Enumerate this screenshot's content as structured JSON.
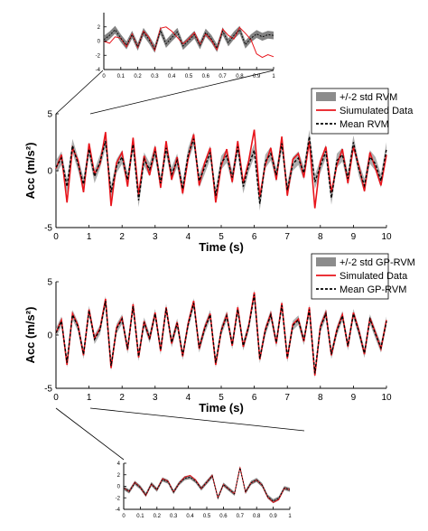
{
  "chart_data": [
    {
      "id": "inset-top",
      "type": "line",
      "x_range": [
        0,
        1
      ],
      "y_range": [
        -4,
        4
      ],
      "xticks": [
        "0",
        "0.1",
        "0.2",
        "0.3",
        "0.4",
        "0.5",
        "0.6",
        "0.7",
        "0.8",
        "0.9",
        "1"
      ],
      "yticks": [
        "-4",
        "-2",
        "0",
        "2"
      ],
      "xlabel": "",
      "ylabel": "",
      "series": [
        {
          "name": "",
          "role": "band",
          "color": "#7a7a7a",
          "values": [
            0.2,
            0.8,
            1.6,
            0.4,
            -0.6,
            0.9,
            -0.8,
            1.3,
            0.2,
            -1.1,
            1.5,
            -0.4,
            0.5,
            1.3,
            -0.7,
            0.1,
            0.9,
            -0.6,
            1.2,
            0.3,
            -1.0,
            1.4,
            -0.2,
            0.8,
            1.6,
            -0.5,
            0.4,
            1.0,
            0.6,
            0.9,
            0.8
          ]
        },
        {
          "name": "",
          "role": "simulated",
          "color": "#e8141b",
          "values": [
            0.0,
            -0.3,
            0.6,
            0.4,
            -0.8,
            1.0,
            -0.9,
            1.4,
            0.5,
            -1.3,
            1.8,
            2.0,
            1.4,
            0.5,
            -0.4,
            0.3,
            1.2,
            -0.5,
            1.0,
            0.1,
            -1.2,
            1.7,
            0.8,
            0.3,
            1.9,
            1.1,
            0.2,
            -1.8,
            -2.3,
            -1.9,
            -2.2
          ]
        },
        {
          "name": "",
          "role": "mean",
          "color": "#000000",
          "values": [
            0.2,
            0.8,
            1.6,
            0.4,
            -0.6,
            0.9,
            -0.8,
            1.3,
            0.2,
            -1.1,
            1.5,
            -0.4,
            0.5,
            1.3,
            -0.7,
            0.1,
            0.9,
            -0.6,
            1.2,
            0.3,
            -1.0,
            1.4,
            -0.2,
            0.8,
            1.6,
            -0.5,
            0.4,
            1.0,
            0.6,
            0.9,
            0.8
          ]
        }
      ]
    },
    {
      "id": "main-top",
      "type": "line",
      "x_range": [
        0,
        10
      ],
      "y_range": [
        -5,
        5
      ],
      "xticks": [
        "0",
        "1",
        "2",
        "3",
        "4",
        "5",
        "6",
        "7",
        "8",
        "9",
        "10"
      ],
      "yticks": [
        "-5",
        "0",
        "5"
      ],
      "xlabel": "Time (s)",
      "ylabel": "Acc (m/s²)",
      "legend": {
        "position": "top-right",
        "entries": [
          {
            "label": "+/-2 std RVM",
            "style": "band",
            "color": "#8c8c8c"
          },
          {
            "label": "Siumulated Data",
            "style": "solid",
            "color": "#e8141b"
          },
          {
            "label": "Mean RVM",
            "style": "dashed",
            "color": "#000000"
          }
        ]
      },
      "series": [
        {
          "name": "+/-2 std RVM",
          "role": "band",
          "color": "#9a9a9a",
          "values": [
            0.3,
            1.1,
            -1.4,
            2.2,
            0.6,
            -1.2,
            1.9,
            -0.5,
            0.8,
            2.6,
            -1.9,
            0.4,
            1.2,
            -0.8,
            2.3,
            -2.6,
            1.0,
            0.1,
            1.7,
            -1.1,
            2.0,
            -0.3,
            0.9,
            -1.6,
            1.4,
            2.8,
            -0.9,
            0.3,
            1.6,
            -2.2,
            0.7,
            1.3,
            -0.6,
            2.1,
            -1.4,
            0.5,
            1.8,
            -2.9,
            0.8,
            1.5,
            -0.4,
            2.4,
            -1.7,
            0.6,
            1.1,
            -0.2,
            3.0,
            -1.0,
            0.4,
            1.7,
            -2.4,
            0.9,
            1.4,
            -0.7,
            2.5,
            0.1,
            -1.3,
            1.2,
            0.6,
            -0.9,
            1.9
          ]
        },
        {
          "name": "Siumulated Data",
          "role": "simulated",
          "color": "#e8141b",
          "values": [
            0.2,
            1.4,
            -2.8,
            2.0,
            0.9,
            -1.9,
            2.4,
            -0.3,
            0.6,
            3.4,
            -3.1,
            0.7,
            1.6,
            -1.4,
            2.9,
            -2.1,
            1.3,
            -0.4,
            2.1,
            -1.5,
            2.6,
            -0.8,
            1.2,
            -2.0,
            1.1,
            3.2,
            -1.3,
            0.7,
            2.0,
            -2.8,
            0.4,
            1.9,
            -1.0,
            2.6,
            -1.1,
            0.9,
            3.6,
            -2.3,
            0.5,
            2.0,
            -0.8,
            3.0,
            -2.2,
            1.0,
            1.5,
            -0.6,
            2.6,
            -3.3,
            0.8,
            2.1,
            -1.9,
            0.5,
            1.9,
            -1.1,
            2.1,
            0.4,
            -1.8,
            1.6,
            0.2,
            -1.3,
            1.4
          ]
        },
        {
          "name": "Mean RVM",
          "role": "mean",
          "color": "#000000",
          "values": [
            0.3,
            1.1,
            -1.4,
            2.2,
            0.6,
            -1.2,
            1.9,
            -0.5,
            0.8,
            2.6,
            -1.9,
            0.4,
            1.2,
            -0.8,
            2.3,
            -2.6,
            1.0,
            0.1,
            1.7,
            -1.1,
            2.0,
            -0.3,
            0.9,
            -1.6,
            1.4,
            2.8,
            -0.9,
            0.3,
            1.6,
            -2.2,
            0.7,
            1.3,
            -0.6,
            2.1,
            -1.4,
            0.5,
            1.8,
            -2.9,
            0.8,
            1.5,
            -0.4,
            2.4,
            -1.7,
            0.6,
            1.1,
            -0.2,
            3.0,
            -1.0,
            0.4,
            1.7,
            -2.4,
            0.9,
            1.4,
            -0.7,
            2.5,
            0.1,
            -1.3,
            1.2,
            0.6,
            -0.9,
            1.9
          ]
        }
      ]
    },
    {
      "id": "main-bottom",
      "type": "line",
      "x_range": [
        0,
        10
      ],
      "y_range": [
        -5,
        5
      ],
      "xticks": [
        "0",
        "1",
        "2",
        "3",
        "4",
        "5",
        "6",
        "7",
        "8",
        "9",
        "10"
      ],
      "yticks": [
        "-5",
        "0",
        "5"
      ],
      "xlabel": "Time (s)",
      "ylabel": "Acc (m/s²)",
      "legend": {
        "position": "top-right",
        "entries": [
          {
            "label": "+/-2 std GP-RVM",
            "style": "band",
            "color": "#8c8c8c"
          },
          {
            "label": "Simulated Data",
            "style": "solid",
            "color": "#e8141b"
          },
          {
            "label": "Mean GP-RVM",
            "style": "dashed",
            "color": "#000000"
          }
        ]
      },
      "series": [
        {
          "name": "+/-2 std GP-RVM",
          "role": "band",
          "color": "#9a9a9a",
          "values": [
            0.2,
            1.3,
            -2.6,
            1.9,
            0.8,
            -1.8,
            2.3,
            -0.4,
            0.5,
            3.2,
            -2.9,
            0.6,
            1.5,
            -1.3,
            2.7,
            -2.0,
            1.2,
            -0.3,
            2.0,
            -1.4,
            2.5,
            -0.7,
            1.1,
            -1.9,
            1.0,
            3.0,
            -1.2,
            0.6,
            1.9,
            -2.6,
            0.4,
            1.8,
            -0.9,
            2.4,
            -1.0,
            0.8,
            3.8,
            -2.2,
            0.4,
            1.9,
            -0.7,
            2.8,
            -2.1,
            0.9,
            1.4,
            -0.5,
            2.4,
            -3.6,
            0.7,
            2.0,
            -1.8,
            0.4,
            1.8,
            -1.0,
            2.0,
            0.3,
            -1.7,
            1.5,
            0.1,
            -1.2,
            1.3
          ]
        },
        {
          "name": "Simulated Data",
          "role": "simulated",
          "color": "#e8141b",
          "values": [
            0.2,
            1.4,
            -2.8,
            2.0,
            0.9,
            -1.9,
            2.4,
            -0.3,
            0.6,
            3.4,
            -3.1,
            0.7,
            1.6,
            -1.4,
            2.9,
            -2.1,
            1.3,
            -0.4,
            2.1,
            -1.5,
            2.6,
            -0.8,
            1.2,
            -2.0,
            1.1,
            3.2,
            -1.3,
            0.7,
            2.0,
            -2.8,
            0.4,
            1.9,
            -1.0,
            2.6,
            -1.1,
            0.9,
            4.0,
            -2.3,
            0.5,
            2.0,
            -0.8,
            3.0,
            -2.2,
            1.0,
            1.5,
            -0.6,
            2.6,
            -3.8,
            0.8,
            2.1,
            -1.9,
            0.5,
            1.9,
            -1.1,
            2.1,
            0.4,
            -1.8,
            1.6,
            0.2,
            -1.3,
            1.4
          ]
        },
        {
          "name": "Mean GP-RVM",
          "role": "mean",
          "color": "#000000",
          "values": [
            0.2,
            1.3,
            -2.6,
            1.9,
            0.8,
            -1.8,
            2.3,
            -0.4,
            0.5,
            3.2,
            -2.9,
            0.6,
            1.5,
            -1.3,
            2.7,
            -2.0,
            1.2,
            -0.3,
            2.0,
            -1.4,
            2.5,
            -0.7,
            1.1,
            -1.9,
            1.0,
            3.0,
            -1.2,
            0.6,
            1.9,
            -2.6,
            0.4,
            1.8,
            -0.9,
            2.4,
            -1.0,
            0.8,
            3.8,
            -2.2,
            0.4,
            1.9,
            -0.7,
            2.8,
            -2.1,
            0.9,
            1.4,
            -0.5,
            2.4,
            -3.6,
            0.7,
            2.0,
            -1.8,
            0.4,
            1.8,
            -1.0,
            2.0,
            0.3,
            -1.7,
            1.5,
            0.1,
            -1.2,
            1.3
          ]
        }
      ]
    },
    {
      "id": "inset-bottom",
      "type": "line",
      "x_range": [
        0,
        1
      ],
      "y_range": [
        -4,
        4
      ],
      "xticks": [
        "0",
        "0.1",
        "0.2",
        "0.3",
        "0.4",
        "0.5",
        "0.6",
        "0.7",
        "0.8",
        "0.9",
        "1"
      ],
      "yticks": [
        "-4",
        "-2",
        "0",
        "2",
        "4"
      ],
      "xlabel": "",
      "ylabel": "",
      "series": [
        {
          "name": "",
          "role": "band",
          "color": "#7a7a7a",
          "values": [
            -0.3,
            -0.9,
            0.6,
            -0.2,
            -1.5,
            0.4,
            -0.6,
            1.2,
            0.8,
            -1.0,
            0.5,
            1.4,
            1.6,
            0.9,
            -0.4,
            0.7,
            1.8,
            -2.0,
            0.3,
            -0.5,
            -1.3,
            3.2,
            -1.0,
            0.6,
            1.1,
            0.2,
            -1.8,
            -2.6,
            -2.1,
            -0.3,
            -0.6
          ]
        },
        {
          "name": "",
          "role": "simulated",
          "color": "#e8141b",
          "values": [
            -0.3,
            -0.9,
            0.7,
            -0.2,
            -1.6,
            0.4,
            -0.6,
            1.3,
            0.9,
            -1.0,
            0.5,
            1.6,
            1.9,
            1.1,
            -0.4,
            0.7,
            1.9,
            -2.0,
            0.3,
            -0.5,
            -1.3,
            3.3,
            -1.0,
            0.6,
            1.1,
            0.2,
            -1.9,
            -2.8,
            -2.3,
            -0.3,
            -0.6
          ]
        },
        {
          "name": "",
          "role": "mean",
          "color": "#000000",
          "values": [
            -0.3,
            -0.9,
            0.6,
            -0.2,
            -1.5,
            0.4,
            -0.6,
            1.2,
            0.8,
            -1.0,
            0.5,
            1.4,
            1.6,
            0.9,
            -0.4,
            0.7,
            1.8,
            -2.0,
            0.3,
            -0.5,
            -1.3,
            3.2,
            -1.0,
            0.6,
            1.1,
            0.2,
            -1.8,
            -2.6,
            -2.1,
            -0.3,
            -0.6
          ]
        }
      ]
    }
  ]
}
